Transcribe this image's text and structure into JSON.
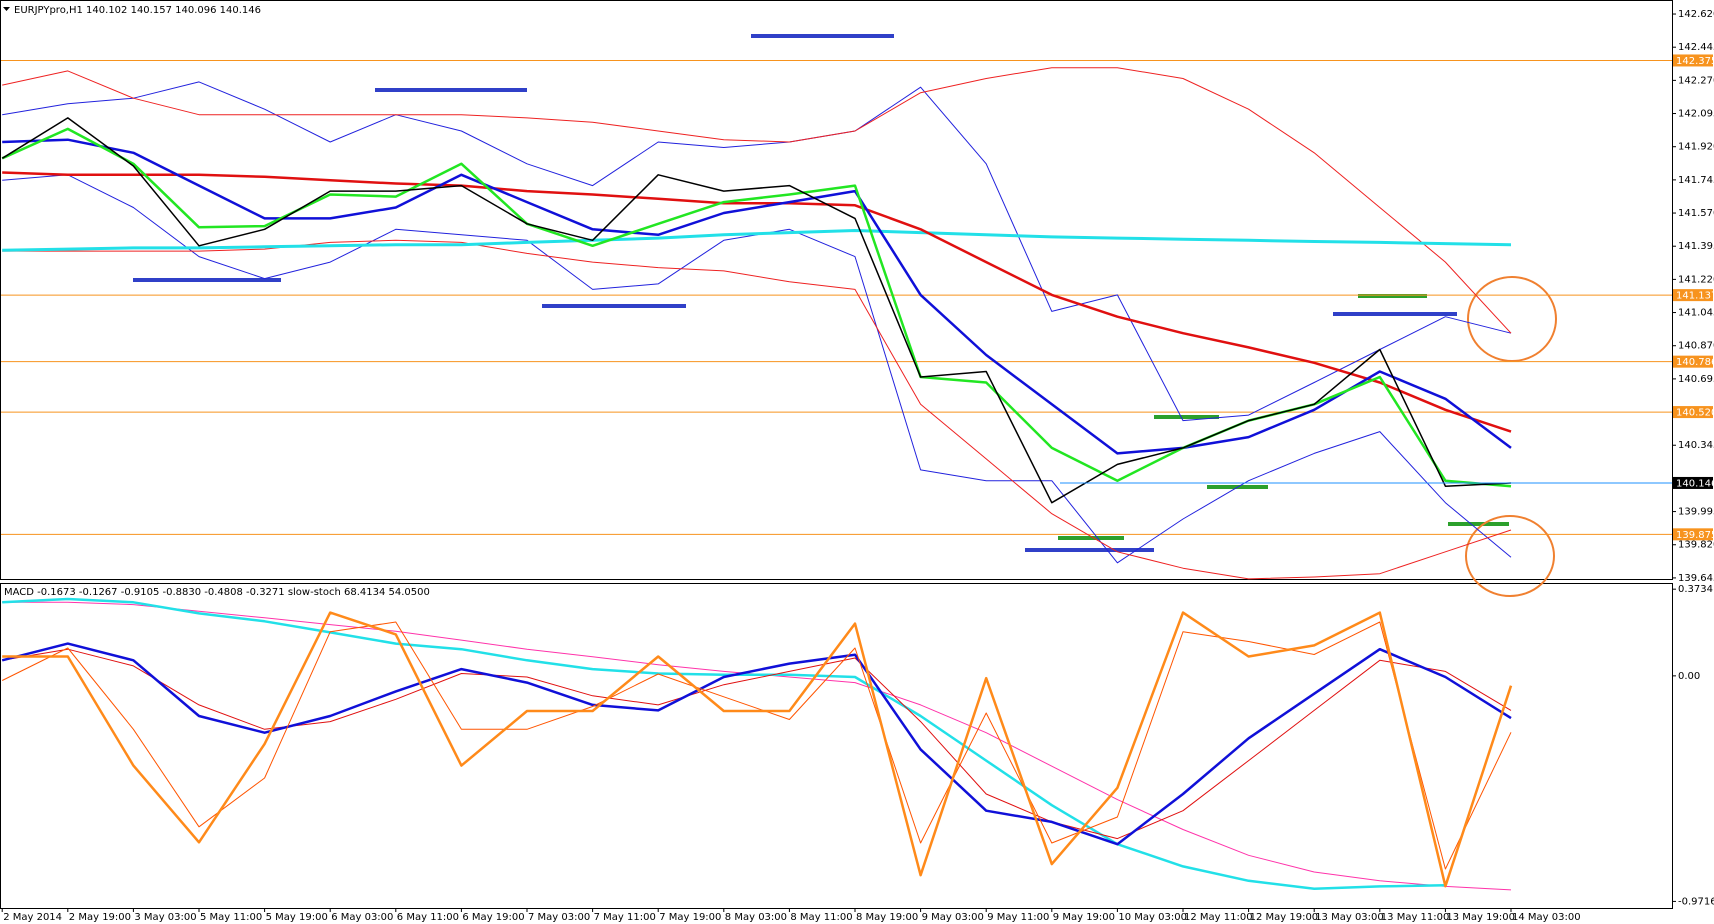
{
  "chart_data": [
    {
      "type": "line",
      "title": "EURJPYpro,H1  140.102 140.157 140.096 140.146",
      "categories": [
        "2 May 2014",
        "2 May 19:00",
        "3 May 03:00",
        "5 May 11:00",
        "5 May 19:00",
        "6 May 03:00",
        "6 May 11:00",
        "6 May 19:00",
        "7 May 03:00",
        "7 May 11:00",
        "7 May 19:00",
        "8 May 03:00",
        "8 May 11:00",
        "8 May 19:00",
        "9 May 03:00",
        "9 May 11:00",
        "9 May 19:00",
        "10 May 03:00",
        "12 May 11:00",
        "12 May 19:00",
        "13 May 03:00",
        "13 May 11:00",
        "13 May 19:00",
        "14 May 03:00"
      ],
      "ylim": [
        139.634,
        142.694
      ],
      "yticks": [
        {
          "value": 142.62,
          "label": "142.620"
        },
        {
          "value": 142.445,
          "label": "142.445"
        },
        {
          "value": 142.27,
          "label": "142.270"
        },
        {
          "value": 142.095,
          "label": "142.095"
        },
        {
          "value": 141.92,
          "label": "141.920"
        },
        {
          "value": 141.745,
          "label": "141.745"
        },
        {
          "value": 141.57,
          "label": "141.570"
        },
        {
          "value": 141.395,
          "label": "141.395"
        },
        {
          "value": 141.22,
          "label": "141.220"
        },
        {
          "value": 141.045,
          "label": "141.045"
        },
        {
          "value": 140.87,
          "label": "140.870"
        },
        {
          "value": 140.695,
          "label": "140.695"
        },
        {
          "value": 140.345,
          "label": "140.345"
        },
        {
          "value": 139.995,
          "label": "139.995"
        },
        {
          "value": 139.82,
          "label": "139.820"
        },
        {
          "value": 139.645,
          "label": "139.645"
        }
      ],
      "levels": [
        {
          "value": 142.375,
          "label": "142.375"
        },
        {
          "value": 141.137,
          "label": "141.137"
        },
        {
          "value": 140.786,
          "label": "140.786"
        },
        {
          "value": 140.52,
          "label": "140.520"
        },
        {
          "value": 139.875,
          "label": "139.875"
        }
      ],
      "level_color": "#f7931e",
      "last_price": {
        "value": 140.146,
        "label": "140.146"
      },
      "last_price_color": "#1e90ff",
      "series": [
        {
          "color": "#2222dd",
          "width": 1,
          "values": [
            142.089,
            142.147,
            142.176,
            142.262,
            142.118,
            141.945,
            142.089,
            142.003,
            141.83,
            141.715,
            141.945,
            141.916,
            141.945,
            142.003,
            142.234,
            141.83,
            141.051,
            141.138,
            140.475,
            140.504,
            140.676,
            140.85,
            141.023,
            140.936
          ]
        },
        {
          "color": "#2222dd",
          "width": 1,
          "values": [
            141.743,
            141.772,
            141.599,
            141.34,
            141.224,
            141.311,
            141.484,
            141.455,
            141.426,
            141.167,
            141.196,
            141.426,
            141.484,
            141.34,
            140.215,
            140.158,
            140.158,
            139.725,
            139.956,
            140.158,
            140.302,
            140.417,
            140.042,
            139.754
          ]
        },
        {
          "color": "#ee2222",
          "width": 1,
          "values": [
            142.245,
            142.32,
            142.176,
            142.089,
            142.089,
            142.089,
            142.089,
            142.089,
            142.072,
            142.049,
            142.003,
            141.957,
            141.945,
            142.003,
            142.205,
            142.28,
            142.337,
            142.337,
            142.28,
            142.118,
            141.888,
            141.599,
            141.311,
            140.936
          ]
        },
        {
          "color": "#ee2222",
          "width": 1,
          "values": [
            141.369,
            141.369,
            141.369,
            141.369,
            141.38,
            141.415,
            141.426,
            141.415,
            141.357,
            141.311,
            141.282,
            141.265,
            141.207,
            141.167,
            140.561,
            140.273,
            139.984,
            139.783,
            139.696,
            139.64,
            139.65,
            139.667,
            139.783,
            139.898
          ]
        },
        {
          "color": "#22e0e8",
          "width": 3,
          "values": [
            141.374,
            141.38,
            141.386,
            141.386,
            141.392,
            141.397,
            141.403,
            141.403,
            141.415,
            141.426,
            141.438,
            141.455,
            141.467,
            141.478,
            141.467,
            141.455,
            141.444,
            141.438,
            141.432,
            141.426,
            141.42,
            141.415,
            141.409,
            141.403
          ]
        },
        {
          "color": "#e01010",
          "width": 2.5,
          "values": [
            141.784,
            141.772,
            141.772,
            141.772,
            141.761,
            141.743,
            141.726,
            141.715,
            141.686,
            141.668,
            141.645,
            141.622,
            141.622,
            141.611,
            141.484,
            141.311,
            141.138,
            141.023,
            140.936,
            140.861,
            140.78,
            140.676,
            140.532,
            140.417
          ]
        },
        {
          "color": "#1010d8",
          "width": 2.5,
          "values": [
            141.945,
            141.957,
            141.888,
            141.715,
            141.542,
            141.542,
            141.599,
            141.772,
            141.628,
            141.484,
            141.455,
            141.57,
            141.628,
            141.686,
            141.138,
            140.821,
            140.561,
            140.302,
            140.331,
            140.388,
            140.532,
            140.734,
            140.59,
            140.331
          ]
        },
        {
          "color": "#22e622",
          "width": 2.5,
          "values": [
            141.859,
            142.014,
            141.83,
            141.495,
            141.501,
            141.668,
            141.657,
            141.83,
            141.513,
            141.397,
            141.513,
            141.628,
            141.668,
            141.715,
            140.705,
            140.676,
            140.331,
            140.158,
            140.331,
            140.475,
            140.561,
            140.705,
            140.158,
            140.129
          ]
        },
        {
          "color": "#000000",
          "width": 1.5,
          "values": [
            141.859,
            142.072,
            141.818,
            141.397,
            141.484,
            141.686,
            141.686,
            141.715,
            141.513,
            141.426,
            141.772,
            141.686,
            141.715,
            141.542,
            140.705,
            140.734,
            140.042,
            140.244,
            140.331,
            140.475,
            140.561,
            140.85,
            140.129,
            140.146
          ]
        }
      ]
    },
    {
      "type": "line",
      "title": "MACD -0.1673 -0.1267 -0.9105 -0.8830 -0.4808 -0.3271 slow-stoch 68.4134 54.0500",
      "ylim": [
        -1.0,
        0.4
      ],
      "yticks": [
        0.3734,
        {
          "value": 0,
          "label": "0.00"
        },
        -0.9716
      ],
      "y2lim": [
        0,
        100
      ],
      "series": [
        {
          "color": "#ff33aa",
          "width": 1,
          "values": [
            0.317,
            0.317,
            0.307,
            0.278,
            0.25,
            0.221,
            0.192,
            0.154,
            0.115,
            0.082,
            0.048,
            0.019,
            -0.005,
            -0.029,
            -0.125,
            -0.245,
            -0.389,
            -0.533,
            -0.662,
            -0.773,
            -0.845,
            -0.883,
            -0.907,
            -0.922
          ]
        },
        {
          "color": "#22e0e8",
          "width": 2.5,
          "values": [
            0.317,
            0.331,
            0.317,
            0.269,
            0.235,
            0.187,
            0.139,
            0.115,
            0.067,
            0.029,
            0.01,
            0.005,
            0.005,
            -0.005,
            -0.173,
            -0.365,
            -0.557,
            -0.725,
            -0.821,
            -0.883,
            -0.917,
            -0.907,
            -0.902,
            null
          ]
        },
        {
          "color": "#e01010",
          "width": 1,
          "values": [
            0.067,
            0.115,
            0.043,
            -0.125,
            -0.23,
            -0.197,
            -0.101,
            0.01,
            -0.005,
            -0.086,
            -0.125,
            -0.038,
            0.019,
            0.077,
            -0.197,
            -0.509,
            -0.629,
            -0.701,
            -0.581,
            -0.365,
            -0.149,
            0.067,
            0.019,
            -0.149
          ]
        },
        {
          "color": "#1010d8",
          "width": 2.5,
          "values": [
            0.067,
            0.139,
            0.067,
            -0.173,
            -0.245,
            -0.173,
            -0.067,
            0.029,
            -0.029,
            -0.125,
            -0.149,
            -0.005,
            0.053,
            0.091,
            -0.317,
            -0.581,
            -0.629,
            -0.725,
            -0.509,
            -0.269,
            -0.077,
            0.115,
            -0.005,
            -0.182
          ]
        },
        {
          "color": "#ff5500",
          "width": 1,
          "axis": "y2",
          "values": [
            70,
            80,
            55,
            25,
            40,
            85,
            88,
            55,
            55,
            62,
            72,
            65,
            58,
            80,
            20,
            60,
            20,
            28,
            85,
            82,
            78,
            88,
            12,
            54.05
          ]
        },
        {
          "color": "#ff8a1a",
          "width": 2.5,
          "axis": "y2",
          "values": [
            77.4,
            77.4,
            43.8,
            20.2,
            50.5,
            90.9,
            84.2,
            43.8,
            60.6,
            60.6,
            77.4,
            60.6,
            60.6,
            87.5,
            10.1,
            70.7,
            13.5,
            37.0,
            90.9,
            77.4,
            80.8,
            90.9,
            6.7,
            68.4134
          ]
        }
      ]
    }
  ]
}
